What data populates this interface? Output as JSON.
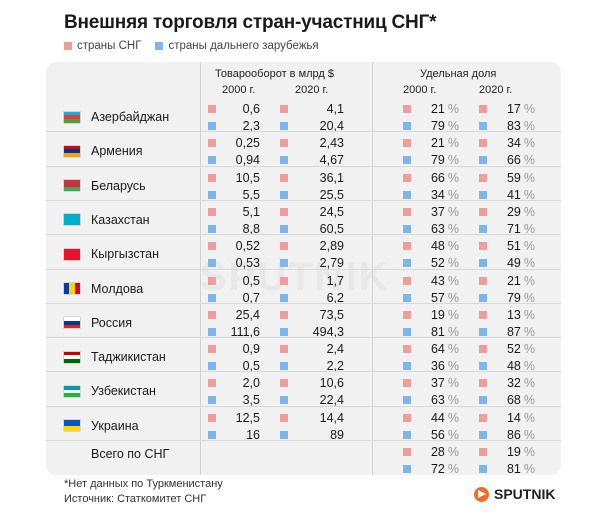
{
  "title": "Внешняя торговля стран-участниц СНГ*",
  "legend": {
    "cis": "страны СНГ",
    "far": "страны дальнего зарубежья"
  },
  "colors": {
    "cis": "#ee9c9c",
    "far": "#7fb6ea"
  },
  "headers": {
    "turnover": "Товарооборот в млрд $",
    "share": "Удельная доля",
    "y2000": "2000 г.",
    "y2020": "2020 г."
  },
  "pct_sign": "%",
  "watermark": "SPUTNIK",
  "chart_data": {
    "type": "table",
    "columns": [
      "Товарооборот 2000 г.",
      "Товарооборот 2020 г.",
      "Удельная доля 2000 г.",
      "Удельная доля 2020 г."
    ],
    "rows": [
      {
        "country": "Азербайджан",
        "flag": [
          "#00b5e2",
          "#ef3340",
          "#509e2f"
        ],
        "flag_dir": "h",
        "cis": [
          "0,6",
          "4,1",
          "21",
          "17"
        ],
        "far": [
          "2,3",
          "20,4",
          "79",
          "83"
        ]
      },
      {
        "country": "Армения",
        "flag": [
          "#d90012",
          "#0033a0",
          "#f2a800"
        ],
        "flag_dir": "h",
        "cis": [
          "0,25",
          "2,43",
          "21",
          "34"
        ],
        "far": [
          "0,94",
          "4,67",
          "79",
          "66"
        ]
      },
      {
        "country": "Беларусь",
        "flag": [
          "#c8313e",
          "#c8313e",
          "#4aa657"
        ],
        "flag_dir": "h",
        "cis": [
          "10,5",
          "36,1",
          "66",
          "59"
        ],
        "far": [
          "5,5",
          "25,5",
          "34",
          "41"
        ]
      },
      {
        "country": "Казахстан",
        "flag": [
          "#00afca",
          "#00afca",
          "#00afca"
        ],
        "flag_dir": "h",
        "cis": [
          "5,1",
          "24,5",
          "37",
          "29"
        ],
        "far": [
          "8,8",
          "60,5",
          "63",
          "71"
        ]
      },
      {
        "country": "Кыргызстан",
        "flag": [
          "#e8112d",
          "#e8112d",
          "#e8112d"
        ],
        "flag_dir": "h",
        "cis": [
          "0,52",
          "2,89",
          "48",
          "51"
        ],
        "far": [
          "0,53",
          "2,79",
          "52",
          "49"
        ]
      },
      {
        "country": "Молдова",
        "flag": [
          "#003da5",
          "#ffd200",
          "#cc092f"
        ],
        "flag_dir": "v",
        "cis": [
          "0,5",
          "1,7",
          "43",
          "21"
        ],
        "far": [
          "0,7",
          "6,2",
          "57",
          "79"
        ]
      },
      {
        "country": "Россия",
        "flag": [
          "#ffffff",
          "#0039a6",
          "#d52b1e"
        ],
        "flag_dir": "h",
        "cis": [
          "25,4",
          "73,5",
          "19",
          "13"
        ],
        "far": [
          "111,6",
          "494,3",
          "81",
          "87"
        ]
      },
      {
        "country": "Таджикистан",
        "flag": [
          "#cc0000",
          "#ffffff",
          "#006600"
        ],
        "flag_dir": "h",
        "cis": [
          "0,9",
          "2,4",
          "64",
          "52"
        ],
        "far": [
          "0,5",
          "2,2",
          "36",
          "48"
        ]
      },
      {
        "country": "Узбекистан",
        "flag": [
          "#0099b5",
          "#ffffff",
          "#1eb53a"
        ],
        "flag_dir": "h",
        "cis": [
          "2,0",
          "10,6",
          "37",
          "32"
        ],
        "far": [
          "3,5",
          "22,4",
          "63",
          "68"
        ]
      },
      {
        "country": "Украина",
        "flag": [
          "#0057b7",
          "#0057b7",
          "#ffd700",
          "#ffd700"
        ],
        "flag_dir": "h",
        "cis": [
          "12,5",
          "14,4",
          "44",
          "14"
        ],
        "far": [
          "16",
          "89",
          "56",
          "86"
        ]
      }
    ],
    "total": {
      "label": "Всего по СНГ",
      "cis": [
        "",
        "",
        "28",
        "19"
      ],
      "far": [
        "",
        "",
        "72",
        "81"
      ]
    }
  },
  "footnote": "*Нет данных по Туркменистану",
  "source": "Источник: Статкомитет СНГ",
  "brand": "SPUTNIK"
}
